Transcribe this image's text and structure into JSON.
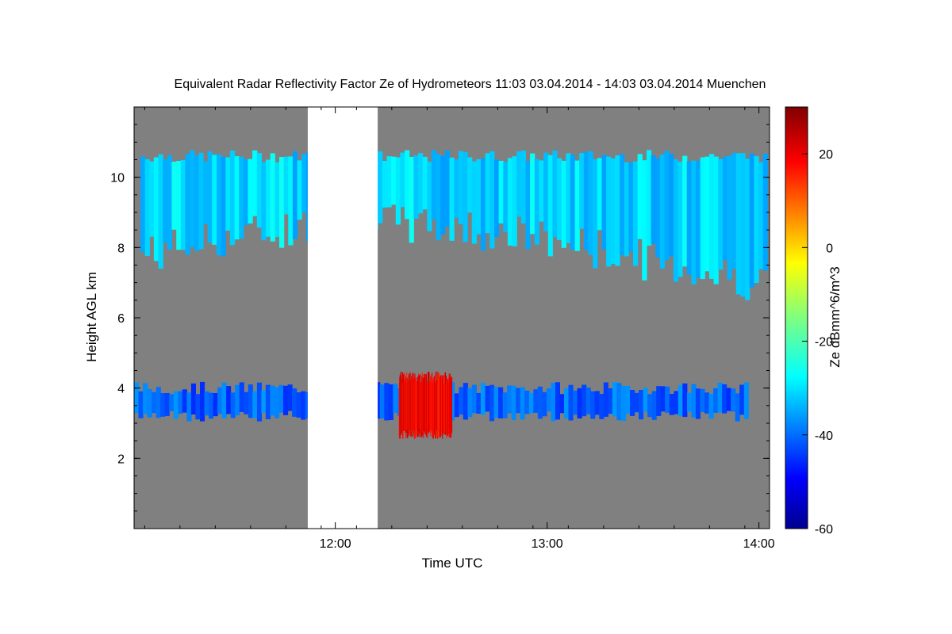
{
  "chart_data": {
    "type": "heatmap",
    "title": "Equivalent Radar Reflectivity Factor Ze of Hydrometeors   11:03 03.04.2014 - 14:03 03.04.2014 Muenchen",
    "xlabel": "Time UTC",
    "ylabel": "Height AGL km",
    "colorbar_label": "Ze dBmm^6/m^3",
    "xlim_hours": [
      11.05,
      14.05
    ],
    "ylim_km": [
      0,
      12
    ],
    "x_ticks": [
      {
        "value": 12.0,
        "label": "12:00"
      },
      {
        "value": 13.0,
        "label": "13:00"
      },
      {
        "value": 14.0,
        "label": "14:00"
      }
    ],
    "y_ticks": [
      {
        "value": 2,
        "label": "2"
      },
      {
        "value": 4,
        "label": "4"
      },
      {
        "value": 6,
        "label": "6"
      },
      {
        "value": 8,
        "label": "8"
      },
      {
        "value": 10,
        "label": "10"
      }
    ],
    "colorbar_range": [
      -60,
      30
    ],
    "colorbar_ticks": [
      {
        "value": 20,
        "label": "20"
      },
      {
        "value": 0,
        "label": "0"
      },
      {
        "value": -20,
        "label": "-20"
      },
      {
        "value": -40,
        "label": "-40"
      },
      {
        "value": -60,
        "label": "-60"
      }
    ],
    "colormap": "jet",
    "no_signal_color": "#808080",
    "missing_data_color": "#ffffff",
    "missing_data_intervals_hours": [
      [
        11.87,
        12.2
      ]
    ],
    "features": [
      {
        "name": "cirrus layer",
        "t_start": 11.08,
        "t_end": 14.04,
        "base_km": 6.8,
        "top_km": 10.6,
        "ze_dbz": -30
      },
      {
        "name": "melting layer band",
        "t_start": 11.05,
        "t_end": 13.95,
        "base_km": 3.2,
        "top_km": 4.0,
        "ze_dbz": -40
      },
      {
        "name": "precipitation core",
        "t_start": 12.3,
        "t_end": 12.55,
        "base_km": 2.7,
        "top_km": 4.3,
        "ze_dbz": 20
      }
    ],
    "grid": false
  }
}
